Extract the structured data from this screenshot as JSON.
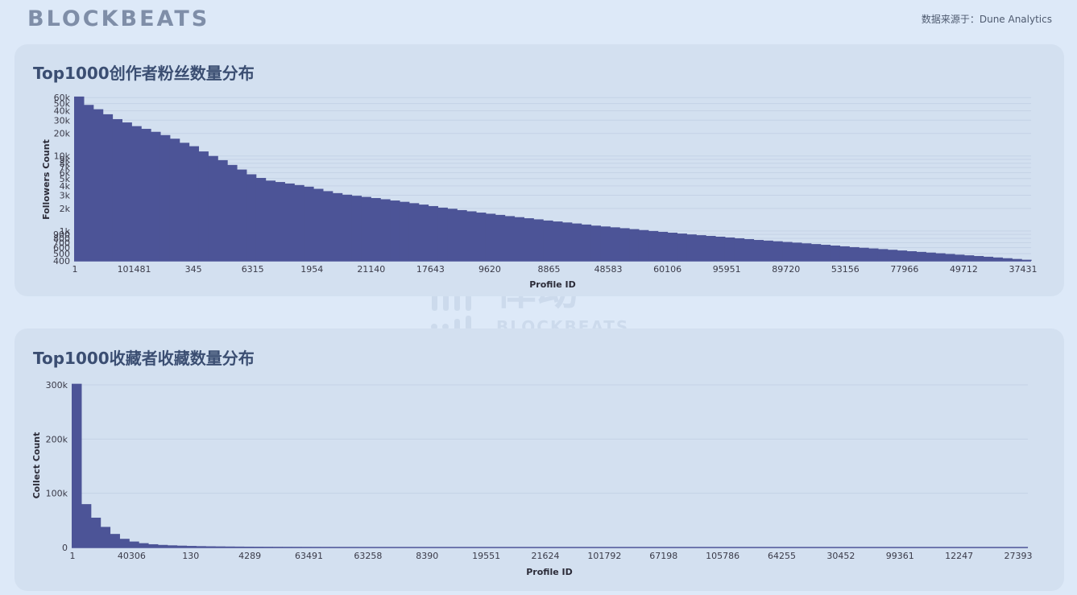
{
  "header": {
    "logo": "BLOCKBEATS",
    "source": "数据来源于：Dune Analytics"
  },
  "watermark": {
    "brand_cn": "律动",
    "brand_en": "BLOCKBEATS"
  },
  "colors": {
    "bar": "#4c5497",
    "panel": "#d3e0f0",
    "background": "#dde9f8",
    "title": "#3b4e72"
  },
  "chart_data": [
    {
      "type": "bar",
      "title": "Top1000创作者粉丝数量分布",
      "xlabel": "Profile ID",
      "ylabel": "Followers Count",
      "yscale": "log",
      "ylim": [
        400,
        65000
      ],
      "grid": true,
      "x_tick_labels": [
        "1",
        "101481",
        "345",
        "6315",
        "1954",
        "21140",
        "17643",
        "9620",
        "8865",
        "48583",
        "60106",
        "95951",
        "89720",
        "53156",
        "77966",
        "49712",
        "37431"
      ],
      "y_ticks": [
        {
          "value": 400,
          "label": "400"
        },
        {
          "value": 500,
          "label": "500"
        },
        {
          "value": 600,
          "label": "600"
        },
        {
          "value": 700,
          "label": "700"
        },
        {
          "value": 800,
          "label": "800"
        },
        {
          "value": 900,
          "label": "900"
        },
        {
          "value": 1000,
          "label": "1k"
        },
        {
          "value": 2000,
          "label": "2k"
        },
        {
          "value": 3000,
          "label": "3k"
        },
        {
          "value": 4000,
          "label": "4k"
        },
        {
          "value": 5000,
          "label": "5k"
        },
        {
          "value": 6000,
          "label": "6k"
        },
        {
          "value": 7000,
          "label": "7k"
        },
        {
          "value": 8000,
          "label": "8k"
        },
        {
          "value": 9000,
          "label": "9k"
        },
        {
          "value": 10000,
          "label": "10k"
        },
        {
          "value": 20000,
          "label": "20k"
        },
        {
          "value": 30000,
          "label": "30k"
        },
        {
          "value": 40000,
          "label": "40k"
        },
        {
          "value": 50000,
          "label": "50k"
        },
        {
          "value": 60000,
          "label": "60k"
        }
      ],
      "values": [
        62000,
        48000,
        42000,
        36000,
        31000,
        28000,
        25000,
        23000,
        21000,
        19000,
        17000,
        15000,
        13500,
        11500,
        10000,
        8800,
        7600,
        6600,
        5700,
        5100,
        4700,
        4500,
        4300,
        4100,
        3900,
        3650,
        3400,
        3200,
        3050,
        2950,
        2850,
        2750,
        2650,
        2550,
        2450,
        2350,
        2250,
        2150,
        2050,
        1980,
        1900,
        1830,
        1760,
        1700,
        1640,
        1580,
        1530,
        1480,
        1430,
        1380,
        1340,
        1300,
        1260,
        1220,
        1180,
        1150,
        1120,
        1090,
        1060,
        1030,
        1000,
        975,
        950,
        925,
        900,
        880,
        860,
        840,
        820,
        800,
        780,
        760,
        745,
        730,
        715,
        700,
        685,
        670,
        655,
        640,
        625,
        610,
        598,
        586,
        574,
        562,
        550,
        538,
        527,
        516,
        505,
        494,
        484,
        474,
        464,
        454,
        444,
        434,
        424,
        414
      ]
    },
    {
      "type": "bar",
      "title": "Top1000收藏者收藏数量分布",
      "xlabel": "Profile ID",
      "ylabel": "Collect Count",
      "yscale": "linear",
      "ylim": [
        0,
        300000
      ],
      "grid": true,
      "x_tick_labels": [
        "1",
        "40306",
        "130",
        "4289",
        "63491",
        "63258",
        "8390",
        "19551",
        "21624",
        "101792",
        "67198",
        "105786",
        "64255",
        "30452",
        "99361",
        "12247",
        "27393"
      ],
      "y_ticks": [
        {
          "value": 0,
          "label": "0"
        },
        {
          "value": 100000,
          "label": "100k"
        },
        {
          "value": 200000,
          "label": "200k"
        },
        {
          "value": 300000,
          "label": "300k"
        }
      ],
      "values": [
        302000,
        80000,
        55000,
        38000,
        25000,
        16000,
        11000,
        8000,
        6000,
        4800,
        4000,
        3400,
        2900,
        2500,
        2200,
        2000,
        1800,
        1650,
        1500,
        1380,
        1280,
        1190,
        1110,
        1040,
        980,
        930,
        880,
        840,
        800,
        765,
        735,
        705,
        680,
        655,
        630,
        610,
        590,
        570,
        552,
        535,
        520,
        505,
        490,
        476,
        463,
        451,
        440,
        429,
        419,
        409,
        400,
        391,
        383,
        375,
        367,
        360,
        353,
        346,
        340,
        334,
        328,
        322,
        317,
        312,
        307,
        302,
        297,
        293,
        289,
        285,
        281,
        277,
        273,
        270,
        266,
        263,
        260,
        257,
        254,
        251,
        248,
        245,
        243,
        240,
        238,
        235,
        233,
        231,
        229,
        227,
        225,
        223,
        221,
        219,
        217,
        215,
        213,
        211,
        209,
        207
      ]
    }
  ]
}
